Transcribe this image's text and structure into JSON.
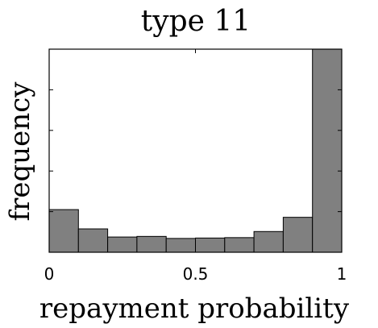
{
  "chart_data": {
    "type": "bar",
    "title": "type 11",
    "xlabel": "repayment probability",
    "ylabel": "frequency",
    "bin_edges": [
      0,
      0.1,
      0.2,
      0.3,
      0.4,
      0.5,
      0.6,
      0.7,
      0.8,
      0.9,
      1.0
    ],
    "values": [
      0.21,
      0.115,
      0.075,
      0.078,
      0.068,
      0.07,
      0.072,
      0.102,
      0.172,
      1.0
    ],
    "xlim": [
      0,
      1
    ],
    "ylim": [
      0,
      1.0
    ],
    "xticks": [
      0,
      0.5,
      1
    ],
    "xtick_labels": [
      "0",
      "0.5",
      "1"
    ],
    "yticks": [
      0.2,
      0.4,
      0.6,
      0.8
    ],
    "ytick_labels": [],
    "grid": false,
    "bar_color": "#808080",
    "bar_edge_color": "#000000"
  }
}
